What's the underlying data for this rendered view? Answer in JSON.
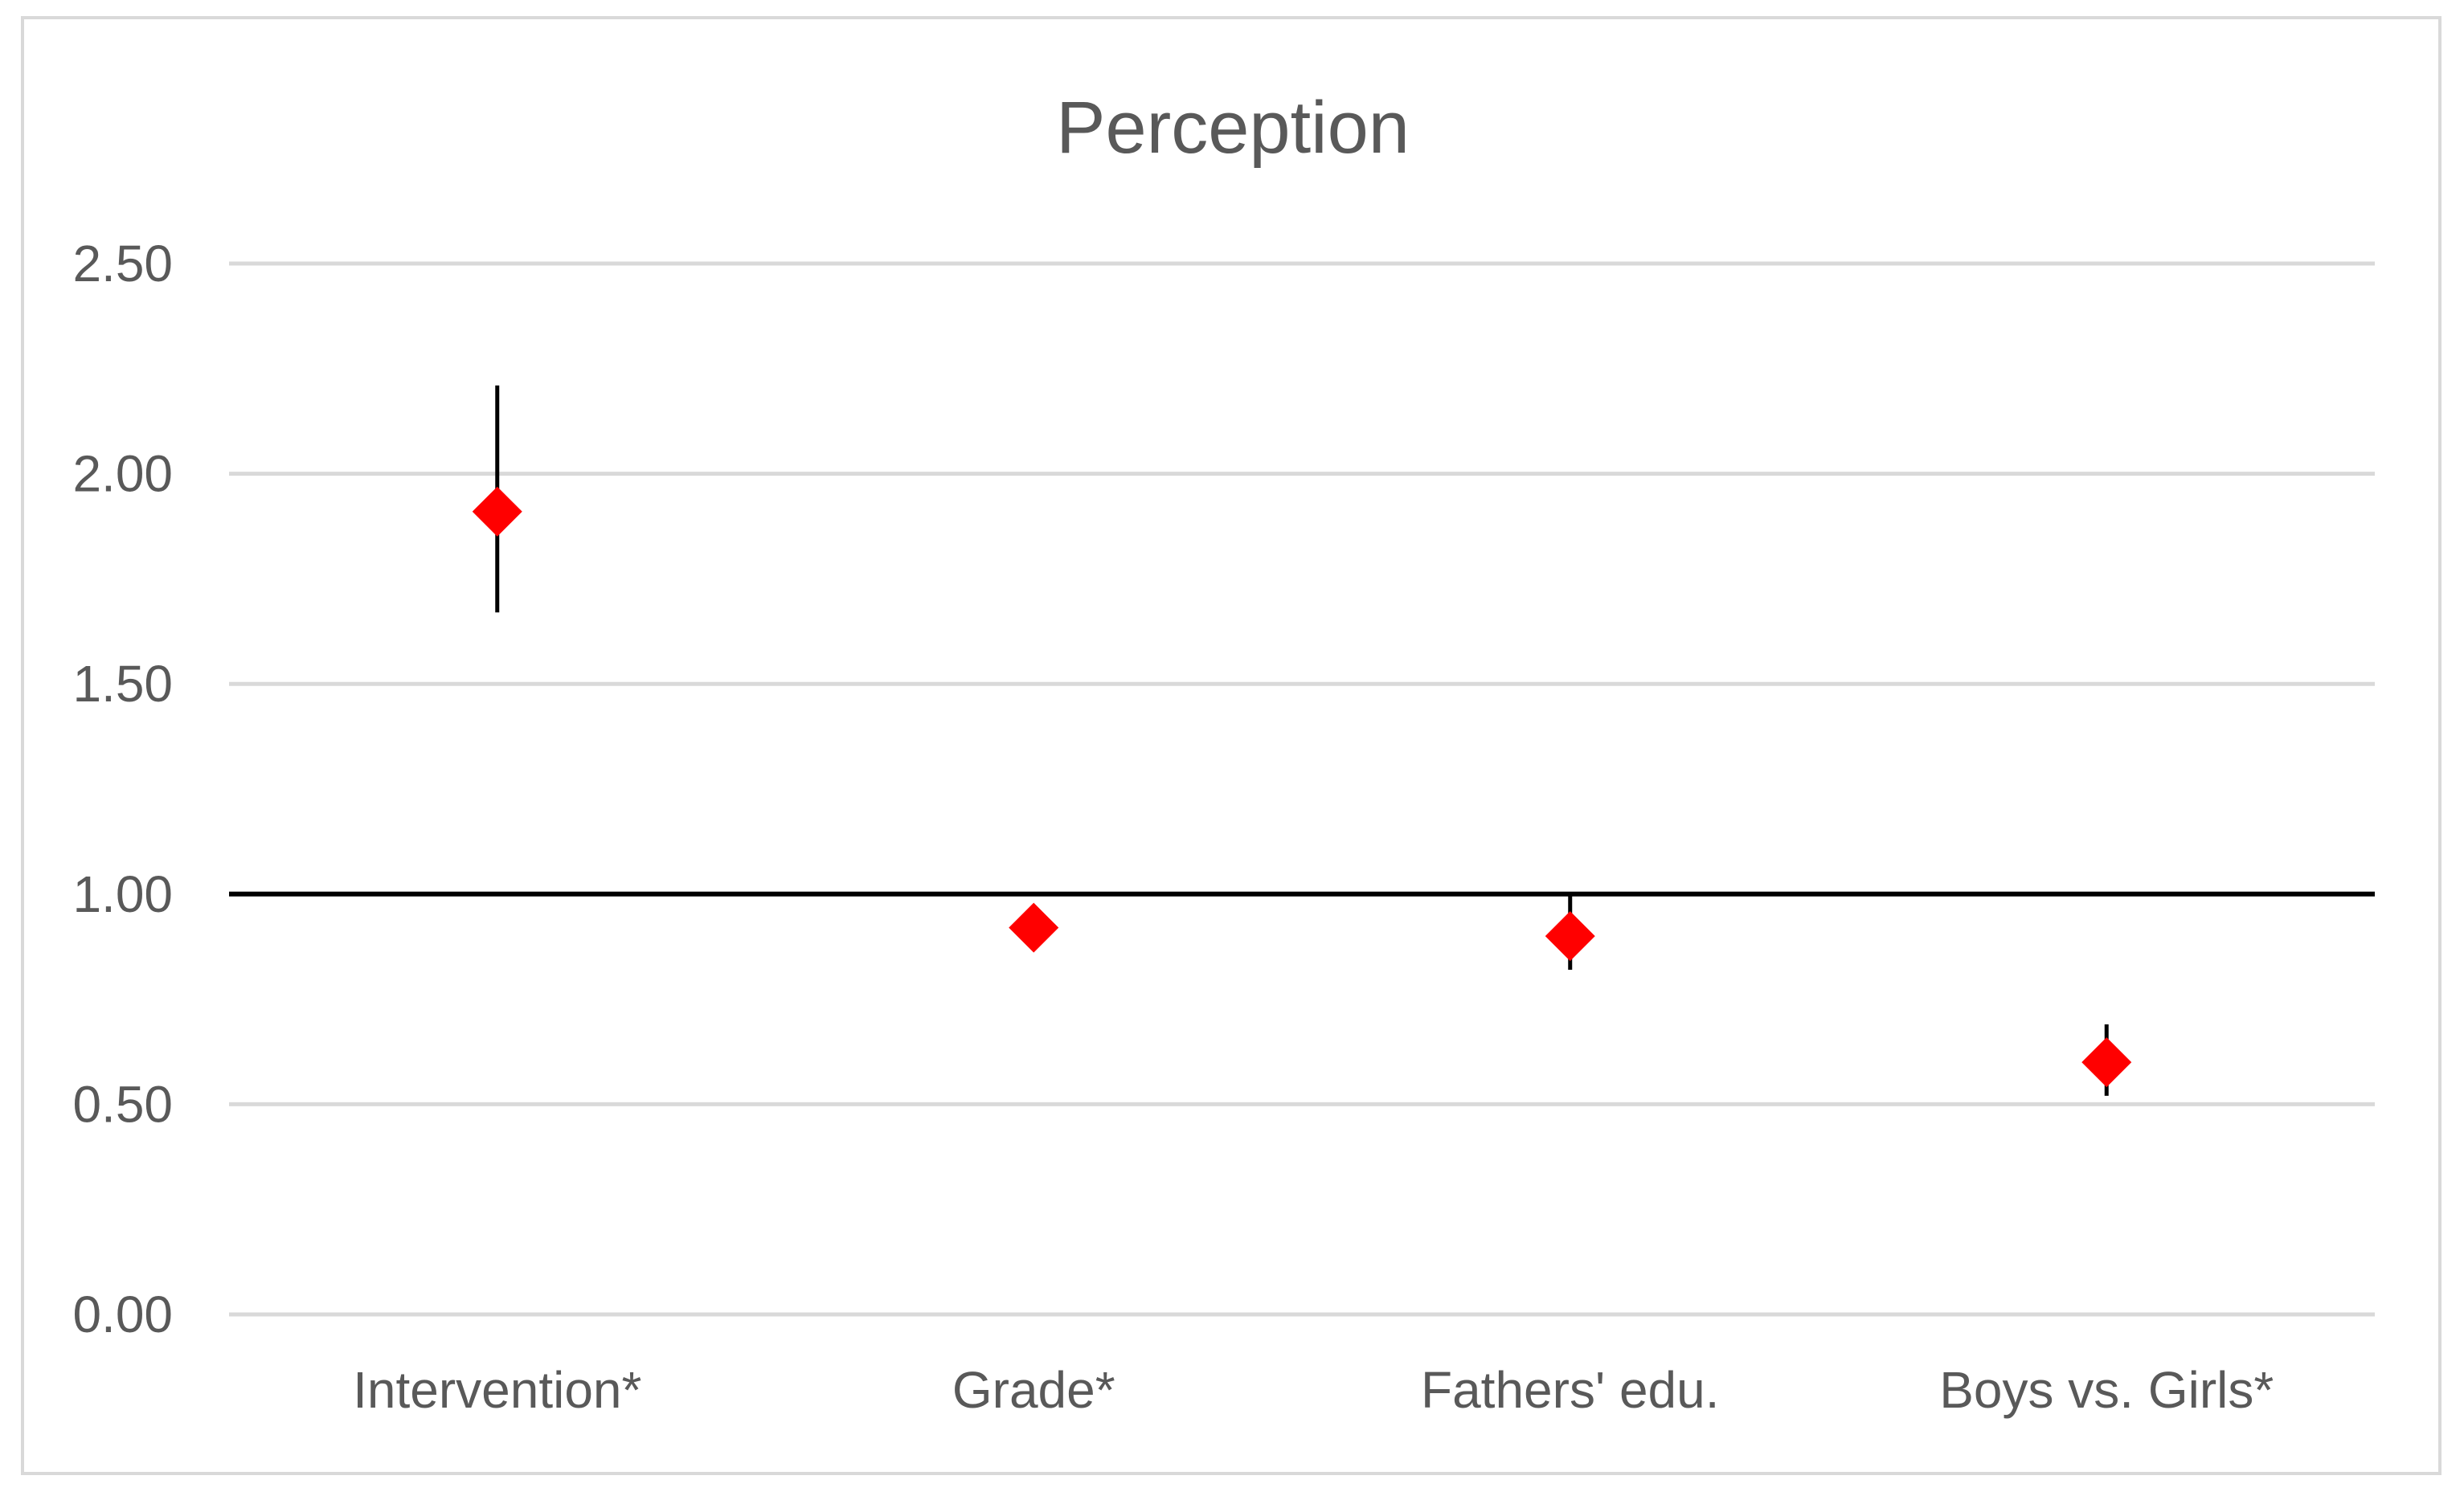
{
  "chart_data": {
    "type": "scatter",
    "title": "Perception",
    "xlabel": "",
    "ylabel": "",
    "categories": [
      "Intervention*",
      "Grade*",
      "Fathers' edu.",
      "Boys vs. Girls*"
    ],
    "values": [
      1.91,
      0.92,
      0.9,
      0.6
    ],
    "error_low": [
      1.67,
      0.91,
      0.82,
      0.52
    ],
    "error_high": [
      2.21,
      0.93,
      1.0,
      0.69
    ],
    "reference_line": 1.0,
    "ylim": [
      0,
      2.5
    ],
    "yticks": [
      "0.00",
      "0.50",
      "1.00",
      "1.50",
      "2.00",
      "2.50"
    ],
    "grid": true,
    "legend": "none",
    "marker": "diamond",
    "colors": {
      "marker": "#ff0000",
      "error_bar": "#000000",
      "reference_line": "#000000",
      "grid": "#d9d9d9",
      "text": "#595959",
      "border": "#d9d9d9"
    }
  }
}
